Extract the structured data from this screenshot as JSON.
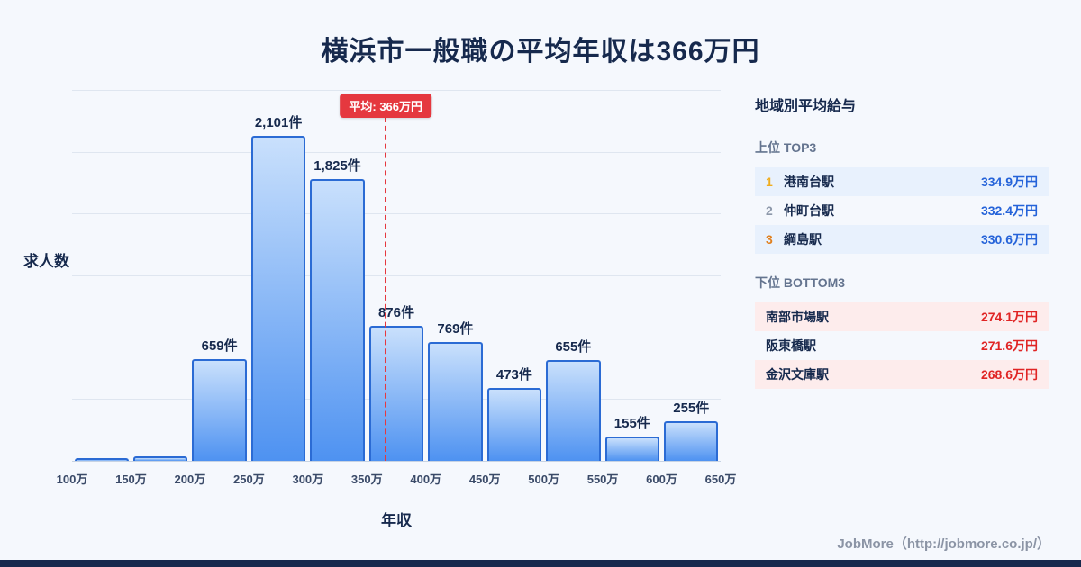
{
  "title": "横浜市一般職の平均年収は366万円",
  "chart_data": {
    "type": "bar",
    "title": "横浜市一般職の平均年収は366万円",
    "xlabel": "年収",
    "ylabel": "求人数",
    "x_tick_labels": [
      "100万",
      "150万",
      "200万",
      "250万",
      "300万",
      "350万",
      "400万",
      "450万",
      "500万",
      "550万",
      "600万",
      "650万"
    ],
    "bins": [
      [
        100,
        150
      ],
      [
        150,
        200
      ],
      [
        200,
        250
      ],
      [
        250,
        300
      ],
      [
        300,
        350
      ],
      [
        350,
        400
      ],
      [
        400,
        450
      ],
      [
        450,
        500
      ],
      [
        500,
        550
      ],
      [
        550,
        600
      ],
      [
        600,
        650
      ]
    ],
    "values": [
      15,
      30,
      659,
      2101,
      1825,
      876,
      769,
      473,
      655,
      155,
      255
    ],
    "bar_labels": [
      "",
      "",
      "659件",
      "2,101件",
      "1,825件",
      "876件",
      "769件",
      "473件",
      "655件",
      "155件",
      "255件"
    ],
    "ylim": [
      0,
      2400
    ],
    "grid": true,
    "legend": "none",
    "average_line": {
      "value": 366,
      "label": "平均: 366万円",
      "axis_range": [
        100,
        650
      ]
    }
  },
  "sidebar": {
    "heading": "地域別平均給与",
    "top": {
      "heading": "上位 TOP3",
      "rows": [
        {
          "rank": "1",
          "station": "港南台駅",
          "value": "334.9万円"
        },
        {
          "rank": "2",
          "station": "仲町台駅",
          "value": "332.4万円"
        },
        {
          "rank": "3",
          "station": "綱島駅",
          "value": "330.6万円"
        }
      ]
    },
    "bottom": {
      "heading": "下位 BOTTOM3",
      "rows": [
        {
          "station": "南部市場駅",
          "value": "274.1万円"
        },
        {
          "station": "阪東橋駅",
          "value": "271.6万円"
        },
        {
          "station": "金沢文庫駅",
          "value": "268.6万円"
        }
      ]
    }
  },
  "footer": {
    "credit": "JobMore（http://jobmore.co.jp/）"
  },
  "colors": {
    "title_navy": "#16294d",
    "bar_fill_top": "#c9e0fc",
    "bar_fill_bottom": "#4e92f1",
    "bar_border": "#2b6bd4",
    "average_red": "#e5383f",
    "top_value_blue": "#2563d9",
    "bottom_value_red": "#e02424",
    "top_row_tint": "#e8f1fd",
    "bottom_row_tint": "#fdecec",
    "bottom_bar_navy": "#16294d"
  }
}
